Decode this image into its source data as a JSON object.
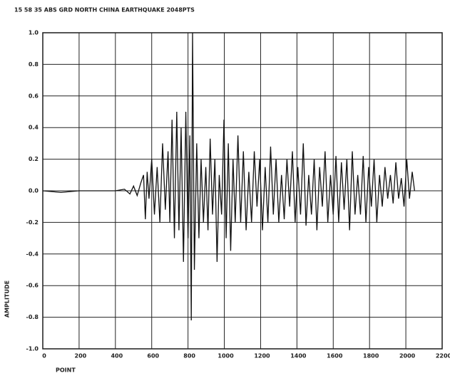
{
  "chart_data": {
    "type": "line",
    "title": "15 58 35 ABS GRD NORTH CHINA EARTHQUAKE 2048PTS",
    "xlabel": "POINT",
    "ylabel": "AMPLITUDE",
    "x": [
      0,
      100,
      200,
      300,
      400,
      450,
      480,
      500,
      520,
      540,
      555,
      565,
      575,
      585,
      600,
      615,
      630,
      645,
      660,
      675,
      690,
      700,
      712,
      725,
      738,
      750,
      762,
      775,
      788,
      800,
      810,
      818,
      825,
      835,
      848,
      860,
      872,
      885,
      898,
      910,
      922,
      935,
      948,
      960,
      972,
      985,
      998,
      1010,
      1022,
      1035,
      1048,
      1060,
      1075,
      1090,
      1105,
      1120,
      1135,
      1150,
      1165,
      1180,
      1195,
      1210,
      1225,
      1240,
      1255,
      1270,
      1285,
      1300,
      1315,
      1330,
      1345,
      1360,
      1375,
      1390,
      1405,
      1420,
      1435,
      1450,
      1465,
      1480,
      1495,
      1510,
      1525,
      1540,
      1555,
      1570,
      1585,
      1600,
      1615,
      1630,
      1645,
      1660,
      1675,
      1690,
      1705,
      1720,
      1735,
      1750,
      1765,
      1780,
      1795,
      1810,
      1825,
      1840,
      1855,
      1870,
      1885,
      1900,
      1915,
      1930,
      1945,
      1960,
      1975,
      1990,
      2005,
      2020,
      2035,
      2048
    ],
    "series": [
      {
        "color": "#111111",
        "values": [
          0,
          -0.01,
          0,
          0,
          0,
          0.01,
          -0.02,
          0.03,
          -0.03,
          0.05,
          0.1,
          -0.18,
          0.12,
          -0.05,
          0.2,
          -0.15,
          0.15,
          -0.2,
          0.3,
          -0.12,
          0.25,
          -0.2,
          0.45,
          -0.3,
          0.5,
          -0.25,
          0.4,
          -0.45,
          0.5,
          -0.3,
          0.35,
          -0.82,
          1.0,
          -0.5,
          0.3,
          -0.3,
          0.2,
          -0.2,
          0.15,
          -0.25,
          0.33,
          -0.15,
          0.2,
          -0.45,
          0.1,
          -0.15,
          0.45,
          -0.3,
          0.3,
          -0.38,
          0.2,
          -0.2,
          0.35,
          -0.2,
          0.25,
          -0.25,
          0.12,
          -0.2,
          0.25,
          -0.1,
          0.2,
          -0.25,
          0.15,
          -0.2,
          0.28,
          -0.15,
          0.2,
          -0.2,
          0.1,
          -0.18,
          0.2,
          -0.1,
          0.25,
          -0.2,
          0.15,
          -0.15,
          0.3,
          -0.22,
          0.1,
          -0.15,
          0.2,
          -0.25,
          0.15,
          -0.1,
          0.25,
          -0.2,
          0.1,
          -0.15,
          0.22,
          -0.2,
          0.18,
          -0.12,
          0.2,
          -0.25,
          0.25,
          -0.15,
          0.1,
          -0.15,
          0.22,
          -0.2,
          0.15,
          -0.1,
          0.2,
          -0.2,
          0.1,
          -0.1,
          0.15,
          -0.05,
          0.1,
          -0.08,
          0.18,
          -0.05,
          0.08,
          -0.1,
          0.2,
          -0.05,
          0.12,
          0
        ]
      }
    ],
    "xlim": [
      0,
      2200
    ],
    "xticks": [
      0,
      200,
      400,
      600,
      800,
      1000,
      1200,
      1400,
      1600,
      1800,
      2000,
      2200
    ],
    "ylim": [
      -1,
      1
    ],
    "yticks": [
      {
        "value": 1,
        "label": "1.0"
      },
      0.8,
      0.6,
      0.4,
      0.2,
      {
        "value": 0,
        "label": "0.0"
      },
      -0.2,
      -0.4,
      -0.6,
      -0.8,
      {
        "value": -1,
        "label": "-1.0"
      }
    ],
    "grid": true
  }
}
